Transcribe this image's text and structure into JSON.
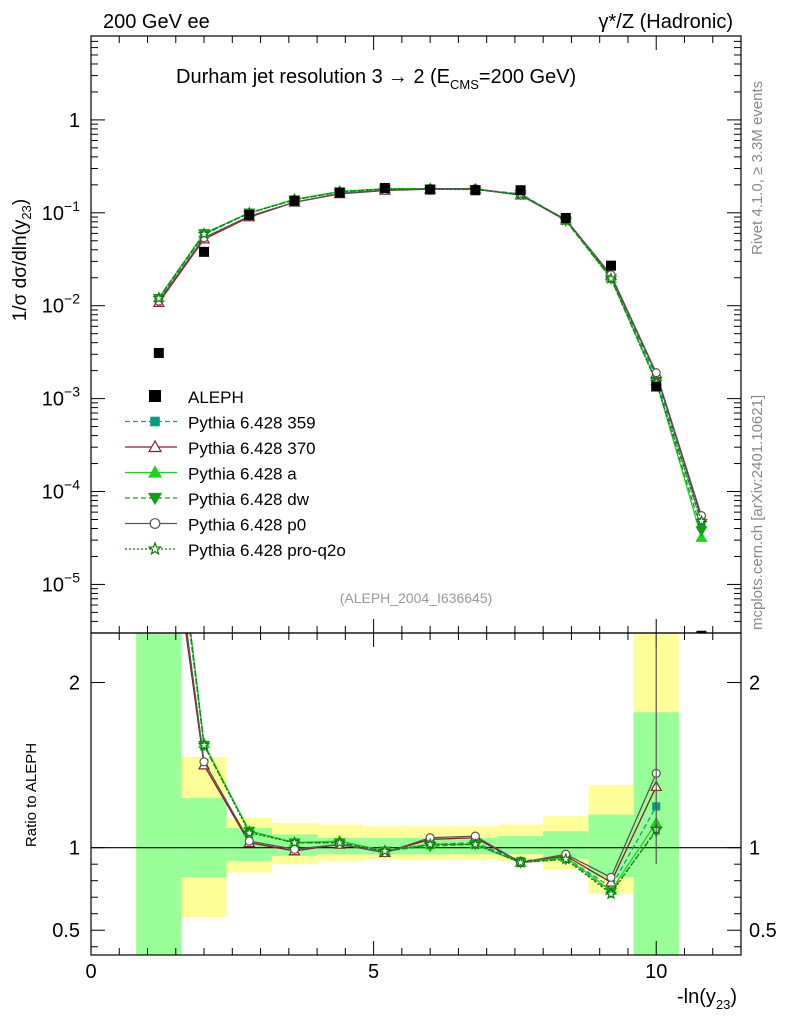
{
  "header": {
    "left": "200 GeV ee",
    "right": "γ*/Z (Hadronic)"
  },
  "side_labels": {
    "rivet": "Rivet 4.1.0, ≥ 3.3M events",
    "mcplots": "mcplots.cern.ch [arXiv:2401.10621]"
  },
  "chart_data": [
    {
      "type": "scatter",
      "panel": "main",
      "title_main": "Durham jet resolution 3",
      "title_arrow": "→",
      "title_tail_a": " 2 (E",
      "title_sub": "CMS",
      "title_tail_b": "=200 GeV)",
      "ylabel_main": "1/σ  dσ/dln(y",
      "ylabel_sub": "23",
      "ylabel_close": ")",
      "yscale": "log",
      "xlim": [
        0,
        11.5
      ],
      "ylim": [
        3e-06,
        8
      ],
      "yticks": [
        {
          "value": 1,
          "mant": "1",
          "exp": ""
        },
        {
          "value": 0.1,
          "mant": "10",
          "exp": "−1"
        },
        {
          "value": 0.01,
          "mant": "10",
          "exp": "−2"
        },
        {
          "value": 0.001,
          "mant": "10",
          "exp": "−3"
        },
        {
          "value": 0.0001,
          "mant": "10",
          "exp": "−4"
        },
        {
          "value": 1e-05,
          "mant": "10",
          "exp": "−5"
        }
      ],
      "watermark": "(ALEPH_2004_I636645)",
      "data": {
        "name": "ALEPH",
        "x": [
          1.2,
          2.0,
          2.8,
          3.6,
          4.4,
          5.2,
          6.0,
          6.8,
          7.6,
          8.4,
          9.2,
          10.0,
          10.8
        ],
        "y": [
          0.0031,
          0.038,
          0.095,
          0.135,
          0.165,
          0.185,
          0.178,
          0.175,
          0.175,
          0.088,
          0.027,
          0.00135,
          2.8e-06
        ]
      },
      "series": [
        {
          "name": "Pythia 6.428 359",
          "color": "#00a080",
          "dash": "5,3",
          "marker": "square",
          "fill": true,
          "y": [
            0.0118,
            0.058,
            0.1,
            0.138,
            0.168,
            0.18,
            0.18,
            0.179,
            0.16,
            0.084,
            0.0205,
            0.0017,
            4.5e-05
          ]
        },
        {
          "name": "Pythia 6.428 370",
          "color": "#8b1a2b",
          "dash": "",
          "marker": "triangle",
          "fill": false,
          "y": [
            0.0108,
            0.052,
            0.09,
            0.13,
            0.16,
            0.174,
            0.18,
            0.18,
            0.155,
            0.083,
            0.021,
            0.00185,
            5.2e-05
          ]
        },
        {
          "name": "Pythia 6.428 a",
          "color": "#20d020",
          "dash": "",
          "marker": "triangle",
          "fill": true,
          "y": [
            0.0122,
            0.06,
            0.1,
            0.14,
            0.17,
            0.182,
            0.182,
            0.178,
            0.158,
            0.084,
            0.0198,
            0.00155,
            3.2e-05
          ]
        },
        {
          "name": "Pythia 6.428 dw",
          "color": "#10a010",
          "dash": "5,3",
          "marker": "triangledown",
          "fill": true,
          "y": [
            0.012,
            0.06,
            0.1,
            0.138,
            0.168,
            0.18,
            0.18,
            0.178,
            0.158,
            0.082,
            0.0196,
            0.0015,
            3.8e-05
          ]
        },
        {
          "name": "Pythia 6.428 p0",
          "color": "#555555",
          "dash": "",
          "marker": "circle",
          "fill": false,
          "y": [
            0.0112,
            0.054,
            0.092,
            0.13,
            0.162,
            0.175,
            0.182,
            0.182,
            0.155,
            0.085,
            0.0215,
            0.0019,
            5.5e-05
          ]
        },
        {
          "name": "Pythia 6.428 pro-q2o",
          "color": "#0a7a0a",
          "dash": "2,2",
          "marker": "star",
          "fill": false,
          "y": [
            0.012,
            0.059,
            0.099,
            0.138,
            0.168,
            0.18,
            0.179,
            0.178,
            0.157,
            0.083,
            0.0196,
            0.0015,
            4.8e-05
          ]
        }
      ]
    },
    {
      "type": "line",
      "panel": "ratio",
      "ylabel": "Ratio to ALEPH",
      "xlabel_main": "-ln(y",
      "xlabel_sub": "23",
      "xlabel_close": ")",
      "xlim": [
        0,
        11.5
      ],
      "ylim": [
        0.35,
        2.3
      ],
      "xticks": [
        0,
        5,
        10
      ],
      "yticks": [
        0.5,
        1,
        2
      ],
      "bands": [
        {
          "x0": 0.8,
          "x1": 1.6,
          "y_lo": 0.35,
          "y_hi": 2.3,
          "g_lo": 0.35,
          "g_hi": 2.3
        },
        {
          "x0": 1.6,
          "x1": 2.4,
          "y_lo": 0.58,
          "y_hi": 1.55,
          "g_lo": 0.82,
          "g_hi": 1.3
        },
        {
          "x0": 2.4,
          "x1": 3.2,
          "y_lo": 0.85,
          "y_hi": 1.18,
          "g_lo": 0.92,
          "g_hi": 1.12
        },
        {
          "x0": 3.2,
          "x1": 4.0,
          "y_lo": 0.9,
          "y_hi": 1.15,
          "g_lo": 0.95,
          "g_hi": 1.08
        },
        {
          "x0": 4.0,
          "x1": 4.8,
          "y_lo": 0.92,
          "y_hi": 1.14,
          "g_lo": 0.96,
          "g_hi": 1.06
        },
        {
          "x0": 4.8,
          "x1": 5.6,
          "y_lo": 0.93,
          "y_hi": 1.13,
          "g_lo": 0.96,
          "g_hi": 1.06
        },
        {
          "x0": 5.6,
          "x1": 6.4,
          "y_lo": 0.93,
          "y_hi": 1.13,
          "g_lo": 0.96,
          "g_hi": 1.06
        },
        {
          "x0": 6.4,
          "x1": 7.2,
          "y_lo": 0.93,
          "y_hi": 1.13,
          "g_lo": 0.96,
          "g_hi": 1.06
        },
        {
          "x0": 7.2,
          "x1": 8.0,
          "y_lo": 0.92,
          "y_hi": 1.14,
          "g_lo": 0.96,
          "g_hi": 1.07
        },
        {
          "x0": 8.0,
          "x1": 8.8,
          "y_lo": 0.87,
          "y_hi": 1.19,
          "g_lo": 0.93,
          "g_hi": 1.1
        },
        {
          "x0": 8.8,
          "x1": 9.6,
          "y_lo": 0.72,
          "y_hi": 1.38,
          "g_lo": 0.82,
          "g_hi": 1.2
        },
        {
          "x0": 9.6,
          "x1": 10.4,
          "y_lo": 0.35,
          "y_hi": 2.3,
          "g_lo": 0.35,
          "g_hi": 1.82
        }
      ],
      "x": [
        1.2,
        2.0,
        2.8,
        3.6,
        4.4,
        5.2,
        6.0,
        6.8,
        7.6,
        8.4,
        9.2,
        10.0
      ],
      "series": [
        {
          "name": "Pythia 6.428 359",
          "y": [
            3.8,
            1.62,
            1.1,
            1.03,
            1.03,
            0.98,
            1.02,
            1.03,
            0.92,
            0.94,
            0.76,
            1.25
          ]
        },
        {
          "name": "Pythia 6.428 370",
          "y": [
            3.5,
            1.5,
            1.03,
            0.98,
            1.02,
            0.97,
            1.05,
            1.06,
            0.91,
            0.95,
            0.79,
            1.37
          ]
        },
        {
          "name": "Pythia 6.428 a",
          "y": [
            3.9,
            1.63,
            1.1,
            1.03,
            1.04,
            0.98,
            1.02,
            1.02,
            0.91,
            0.94,
            0.74,
            1.15
          ]
        },
        {
          "name": "Pythia 6.428 dw",
          "y": [
            3.9,
            1.62,
            1.1,
            1.03,
            1.03,
            0.98,
            1.01,
            1.02,
            0.91,
            0.93,
            0.73,
            1.1
          ]
        },
        {
          "name": "Pythia 6.428 p0",
          "y": [
            3.6,
            1.52,
            1.04,
            0.99,
            1.02,
            0.97,
            1.06,
            1.07,
            0.91,
            0.96,
            0.82,
            1.45
          ]
        },
        {
          "name": "Pythia 6.428 pro-q2o",
          "y": [
            3.9,
            1.62,
            1.09,
            1.03,
            1.03,
            0.98,
            1.02,
            1.02,
            0.91,
            0.93,
            0.72,
            1.11
          ]
        }
      ]
    }
  ]
}
